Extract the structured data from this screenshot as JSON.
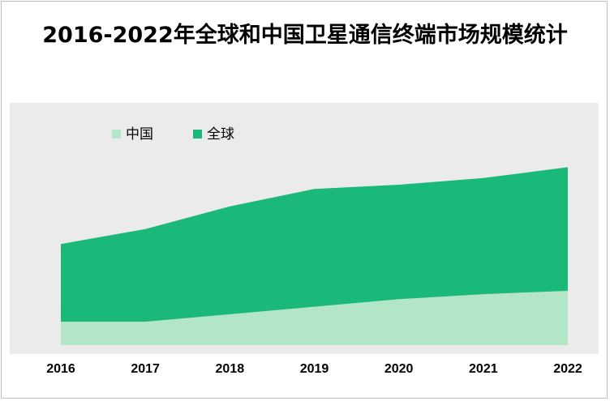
{
  "chart_data": {
    "type": "area",
    "title": "2016-2022年全球和中国卫星通信终端市场规模统计",
    "categories": [
      "2016",
      "2017",
      "2018",
      "2019",
      "2020",
      "2021",
      "2022"
    ],
    "series": [
      {
        "name": "中国",
        "values": [
          28,
          28,
          37,
          46,
          55,
          61,
          65
        ]
      },
      {
        "name": "全球",
        "values": [
          121,
          139,
          166,
          187,
          192,
          200,
          213
        ]
      }
    ],
    "stacked": false,
    "ylim": [
      0,
      290
    ],
    "legend": "top-left",
    "grid": false,
    "colors": {
      "中国": "#b3e6c6",
      "全球": "#1ab97a",
      "plot_bg": "#ebebeb"
    }
  }
}
